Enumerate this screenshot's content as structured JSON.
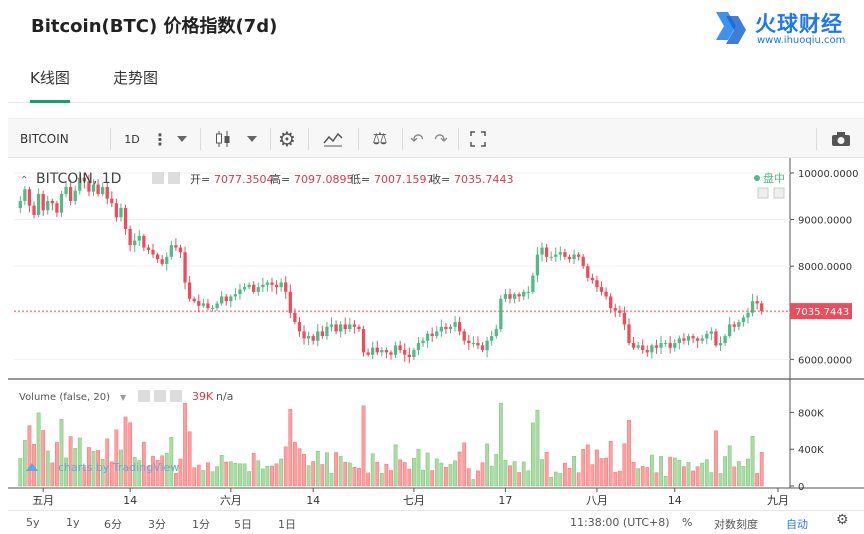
{
  "header": {
    "title": "Bitcoin(BTC) 价格指数(7d)",
    "logo_cn": "火球财经",
    "logo_url": "www.ihuoqiu.com"
  },
  "tabs": [
    {
      "label": "K线图",
      "active": true
    },
    {
      "label": "走势图",
      "active": false
    }
  ],
  "toolbar": {
    "symbol": "BITCOIN",
    "interval": "1D",
    "icons": [
      "more-icon",
      "dropdown-icon",
      "candles-icon",
      "dropdown-icon",
      "gear-icon",
      "indicators-icon",
      "compare-icon",
      "undo-icon",
      "redo-icon",
      "fullscreen-icon",
      "camera-icon"
    ]
  },
  "legend": {
    "symbol": "BITCOIN, 1D",
    "open_label": "开=",
    "open": "7077.3504",
    "high_label": "高=",
    "high": "7097.0895",
    "low_label": "低=",
    "low": "7007.1597",
    "close_label": "收=",
    "close": "7035.7443",
    "status": "盘中"
  },
  "volume_legend": {
    "name": "Volume (false, 20)",
    "value": "39K",
    "extra": "n/a"
  },
  "watermark": "charts by TradingView",
  "colors": {
    "up": "#53b987",
    "down": "#eb4d5c",
    "vol_up": "#a9dca3",
    "vol_down": "#ff9e9e",
    "accent": "#13a36a",
    "price_badge": "#eb4d5c"
  },
  "chart_data": {
    "type": "candlestick",
    "price_axis": {
      "min": 5600,
      "max": 10150,
      "ticks": [
        "10000.0000",
        "9000.0000",
        "8000.0000",
        "7000.0000",
        "6000.0000"
      ],
      "tick_values": [
        10000,
        9000,
        8000,
        7000,
        6000
      ]
    },
    "last_price_label": "7035.7443",
    "last_price": 7035.7443,
    "volume_axis": {
      "min": 0,
      "max": 1000000,
      "ticks": [
        "800K",
        "400K",
        "0"
      ],
      "tick_values": [
        800000,
        400000,
        0
      ]
    },
    "x_labels": [
      "五月",
      "14",
      "六月",
      "14",
      "七月",
      "17",
      "八月",
      "14",
      "九月"
    ],
    "x_label_index": [
      5,
      24,
      46,
      64,
      86,
      106,
      126,
      143,
      163
    ],
    "closes": [
      9400,
      9650,
      9300,
      9100,
      9550,
      9200,
      9400,
      9350,
      9150,
      9550,
      9700,
      9400,
      9620,
      9900,
      9820,
      9600,
      9750,
      9550,
      9700,
      9450,
      9350,
      9050,
      9250,
      8800,
      8450,
      8550,
      8650,
      8400,
      8350,
      8250,
      8150,
      8050,
      8200,
      8450,
      8400,
      8300,
      7650,
      7300,
      7250,
      7150,
      7200,
      7100,
      7100,
      7200,
      7350,
      7250,
      7350,
      7400,
      7500,
      7550,
      7600,
      7450,
      7550,
      7600,
      7650,
      7600,
      7550,
      7650,
      7450,
      7000,
      6800,
      6600,
      6450,
      6500,
      6400,
      6600,
      6500,
      6700,
      6750,
      6600,
      6750,
      6650,
      6750,
      6700,
      6650,
      6150,
      6100,
      6250,
      6150,
      6200,
      6150,
      6100,
      6300,
      6200,
      6100,
      6050,
      6200,
      6350,
      6400,
      6550,
      6500,
      6600,
      6700,
      6650,
      6700,
      6800,
      6600,
      6400,
      6350,
      6350,
      6300,
      6200,
      6400,
      6500,
      6650,
      7300,
      7400,
      7300,
      7400,
      7350,
      7450,
      7450,
      7800,
      8250,
      8400,
      8200,
      8200,
      8250,
      8300,
      8200,
      8150,
      8250,
      8200,
      8000,
      7750,
      7700,
      7550,
      7450,
      7350,
      7100,
      7050,
      7000,
      6750,
      6350,
      6250,
      6300,
      6200,
      6150,
      6300,
      6250,
      6350,
      6350,
      6250,
      6350,
      6450,
      6400,
      6500,
      6450,
      6400,
      6450,
      6550,
      6600,
      6300,
      6350,
      6500,
      6750,
      6700,
      6800,
      6900,
      7000,
      7250,
      7200,
      7036
    ]
  },
  "bottom_bar": {
    "ranges": [
      "5y",
      "1y",
      "6分",
      "3分",
      "1分",
      "5日",
      "1日"
    ],
    "time": "11:38:00 (UTC+8)",
    "percent": "%",
    "log": "对数刻度",
    "auto": "自动"
  }
}
